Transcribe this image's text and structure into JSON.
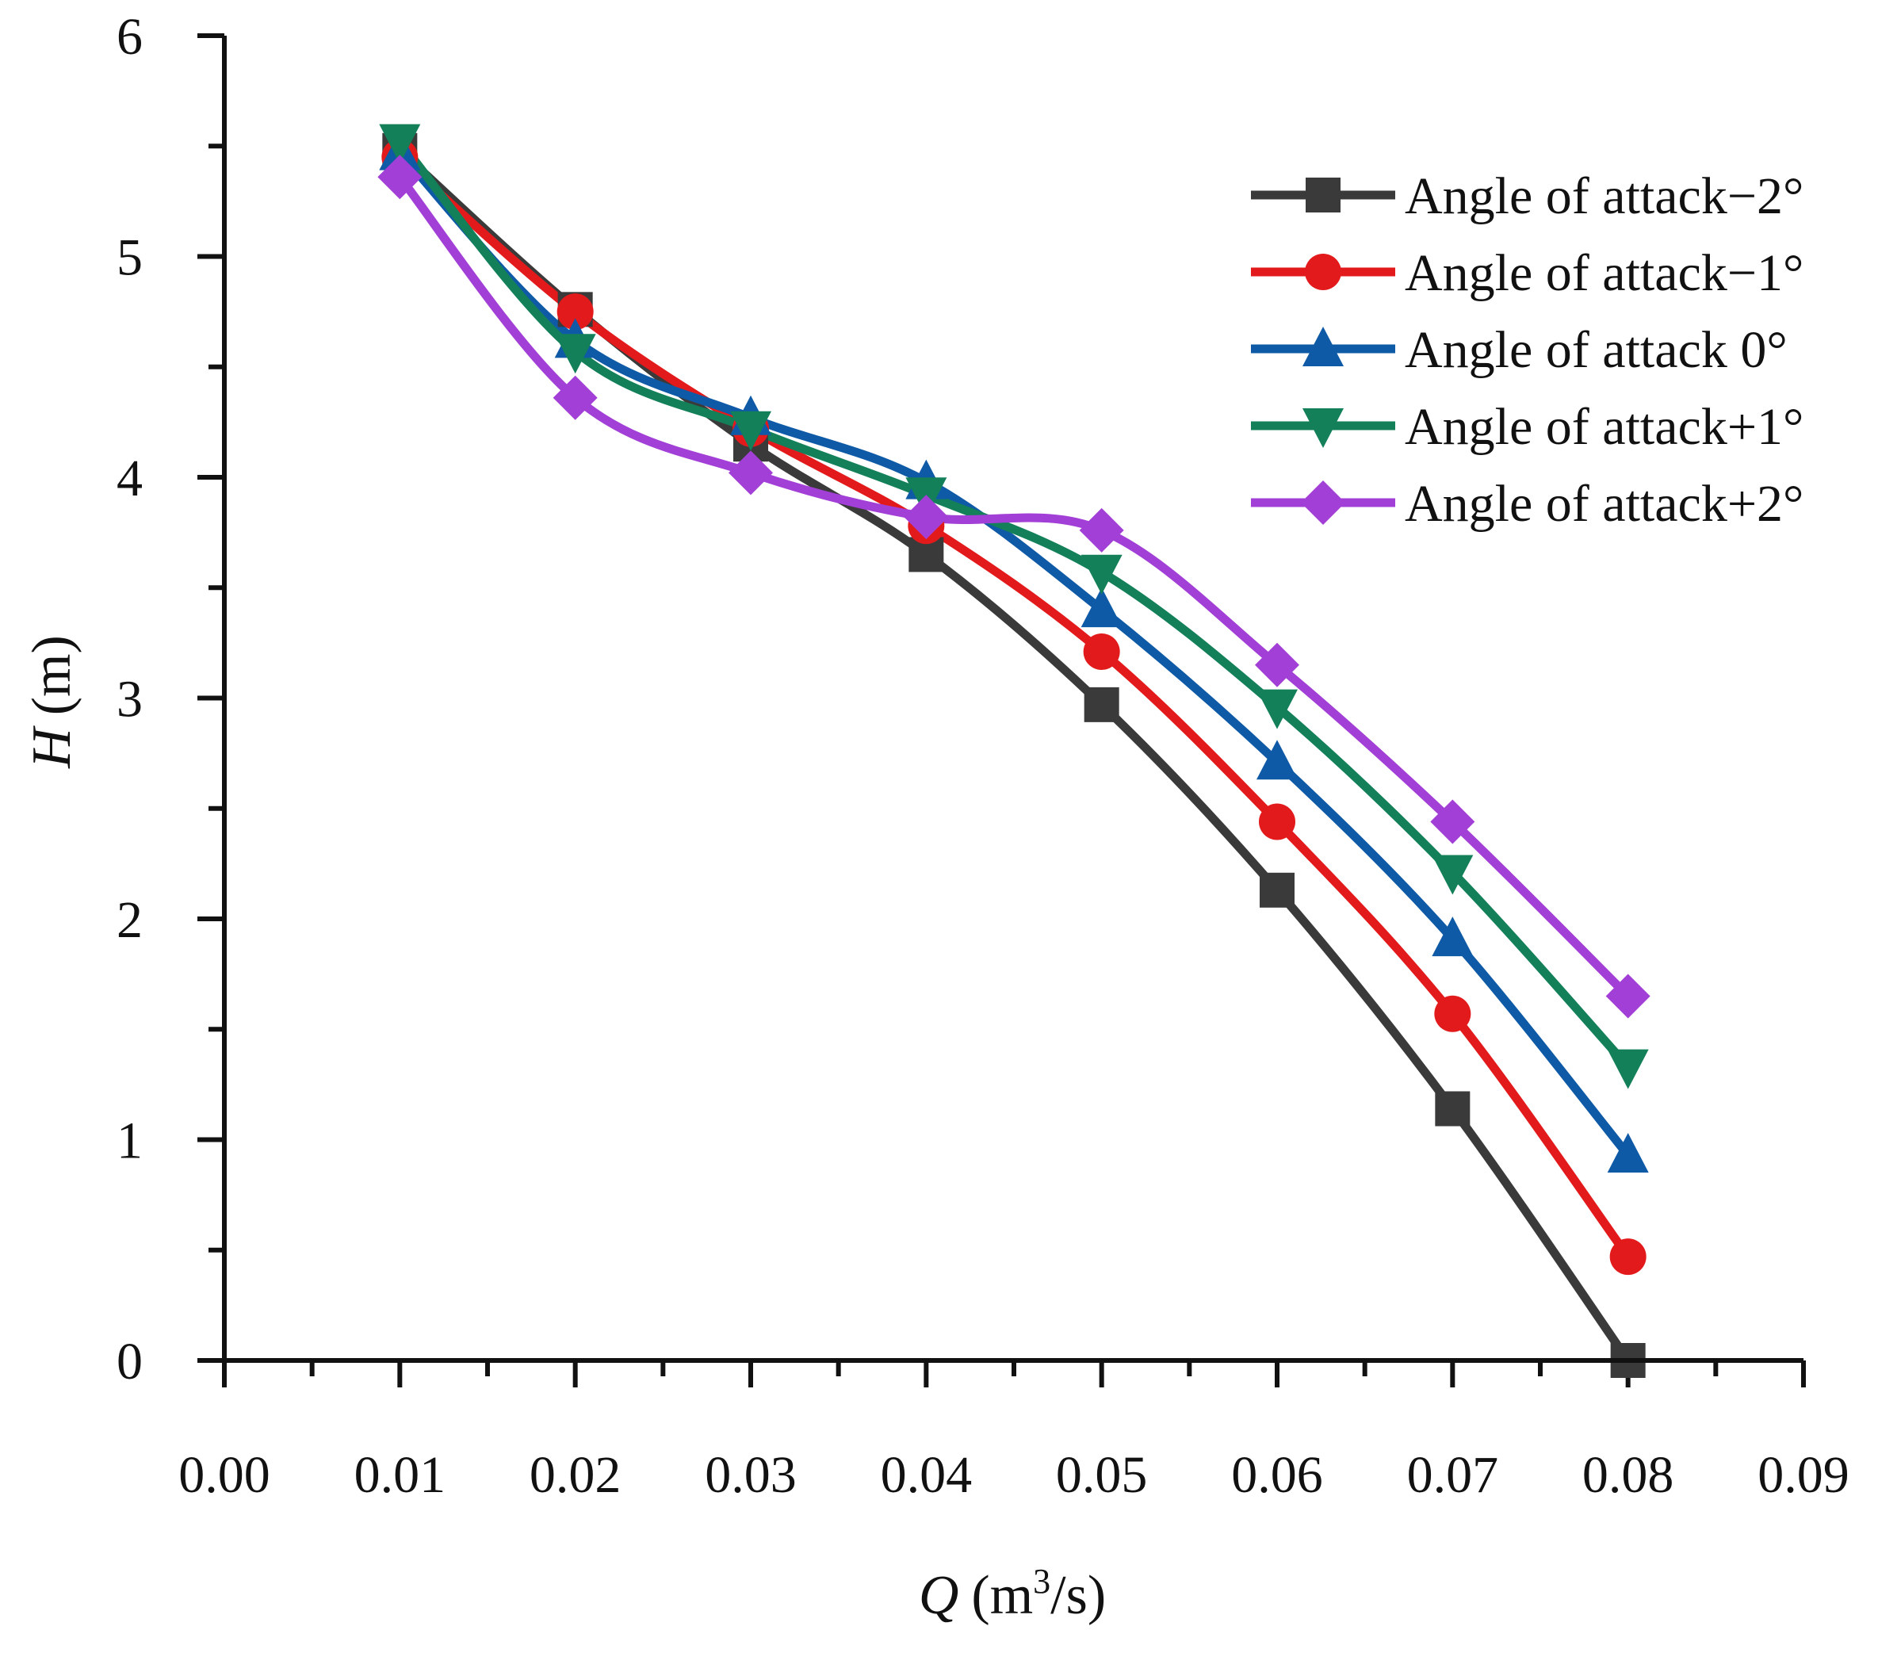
{
  "chart_data": {
    "type": "line",
    "title": "",
    "xlabel_var": "Q",
    "xlabel_unit_pre": "(m",
    "xlabel_unit_sup": "3",
    "xlabel_unit_post": "/s)",
    "ylabel_var": "H",
    "ylabel_unit": "(m)",
    "xlim": [
      0,
      0.09
    ],
    "ylim": [
      0,
      6
    ],
    "x_ticks": [
      0.0,
      0.01,
      0.02,
      0.03,
      0.04,
      0.05,
      0.06,
      0.07,
      0.08,
      0.09
    ],
    "x_tick_labels": [
      "0.00",
      "0.01",
      "0.02",
      "0.03",
      "0.04",
      "0.05",
      "0.06",
      "0.07",
      "0.08",
      "0.09"
    ],
    "y_ticks": [
      0,
      1,
      2,
      3,
      4,
      5,
      6
    ],
    "y_tick_labels": [
      "0",
      "1",
      "2",
      "3",
      "4",
      "5",
      "6"
    ],
    "legend_position": "top-right",
    "x": [
      0.01,
      0.02,
      0.03,
      0.04,
      0.05,
      0.06,
      0.07,
      0.08
    ],
    "series": [
      {
        "name": "Angle of attack−2°",
        "color": "#3a3a3a",
        "marker": "square",
        "values": [
          5.48,
          4.76,
          4.15,
          3.65,
          2.97,
          2.13,
          1.14,
          0.0
        ]
      },
      {
        "name": "Angle of attack−1°",
        "color": "#e31a1c",
        "marker": "circle",
        "values": [
          5.45,
          4.75,
          4.22,
          3.78,
          3.21,
          2.44,
          1.57,
          0.47
        ]
      },
      {
        "name": "Angle of attack 0°",
        "color": "#0f5aa6",
        "marker": "triangle-up",
        "values": [
          5.47,
          4.62,
          4.27,
          3.98,
          3.4,
          2.71,
          1.91,
          0.93
        ]
      },
      {
        "name": "Angle of attack+1°",
        "color": "#13805a",
        "marker": "triangle-down",
        "values": [
          5.52,
          4.57,
          4.22,
          3.92,
          3.57,
          2.96,
          2.21,
          1.33
        ]
      },
      {
        "name": "Angle of attack+2°",
        "color": "#a23fd6",
        "marker": "diamond",
        "values": [
          5.36,
          4.36,
          4.02,
          3.82,
          3.76,
          3.15,
          2.44,
          1.65
        ]
      }
    ]
  }
}
